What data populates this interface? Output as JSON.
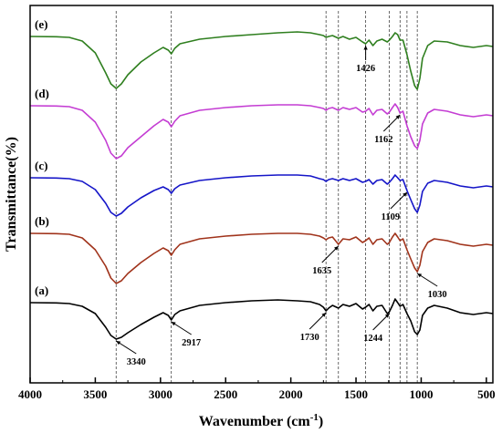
{
  "chart_data": {
    "type": "line",
    "xlabel": "Wavenumber (cm-1)",
    "xlabel_main": "Wavenumber (cm",
    "xlabel_sup": "-1",
    "xlabel_close": ")",
    "ylabel": "Transmittance(%)",
    "xlim": [
      4000,
      450
    ],
    "x_reversed": true,
    "x_ticks": [
      4000,
      3500,
      3000,
      2500,
      2000,
      1500,
      1000,
      500
    ],
    "grid": false,
    "legend": "none",
    "reference_lines": [
      3340,
      2917,
      1730,
      1635,
      1426,
      1244,
      1162,
      1109,
      1030
    ],
    "series": [
      {
        "name": "(a)",
        "color": "#000000",
        "baseline": 0.0,
        "points": [
          [
            4000,
            0
          ],
          [
            3800,
            -0.3
          ],
          [
            3700,
            -1
          ],
          [
            3600,
            -4
          ],
          [
            3500,
            -12
          ],
          [
            3420,
            -27
          ],
          [
            3380,
            -36
          ],
          [
            3340,
            -40
          ],
          [
            3300,
            -38
          ],
          [
            3250,
            -33
          ],
          [
            3150,
            -24
          ],
          [
            3050,
            -16
          ],
          [
            2980,
            -11
          ],
          [
            2940,
            -14
          ],
          [
            2917,
            -19
          ],
          [
            2890,
            -13
          ],
          [
            2850,
            -9
          ],
          [
            2700,
            -3
          ],
          [
            2500,
            0
          ],
          [
            2300,
            2
          ],
          [
            2100,
            3
          ],
          [
            1950,
            2
          ],
          [
            1850,
            1
          ],
          [
            1780,
            -2
          ],
          [
            1750,
            -5
          ],
          [
            1730,
            -9
          ],
          [
            1710,
            -6
          ],
          [
            1680,
            -3
          ],
          [
            1635,
            -6
          ],
          [
            1600,
            -2
          ],
          [
            1550,
            -4
          ],
          [
            1500,
            -1
          ],
          [
            1450,
            -7
          ],
          [
            1426,
            -5
          ],
          [
            1400,
            -2
          ],
          [
            1370,
            -9
          ],
          [
            1340,
            -4
          ],
          [
            1300,
            -3
          ],
          [
            1260,
            -12
          ],
          [
            1244,
            -10
          ],
          [
            1220,
            -3
          ],
          [
            1200,
            4
          ],
          [
            1180,
            0
          ],
          [
            1162,
            -4
          ],
          [
            1140,
            -2
          ],
          [
            1109,
            -12
          ],
          [
            1080,
            -20
          ],
          [
            1050,
            -32
          ],
          [
            1030,
            -35
          ],
          [
            1010,
            -30
          ],
          [
            990,
            -14
          ],
          [
            950,
            -6
          ],
          [
            900,
            -3
          ],
          [
            800,
            -6
          ],
          [
            700,
            -11
          ],
          [
            600,
            -13
          ],
          [
            500,
            -11
          ],
          [
            450,
            -12
          ]
        ]
      },
      {
        "name": "(b)",
        "color": "#a0331b",
        "baseline": 0.0,
        "points": [
          [
            4000,
            0
          ],
          [
            3800,
            -0.3
          ],
          [
            3700,
            -1
          ],
          [
            3600,
            -5
          ],
          [
            3500,
            -18
          ],
          [
            3420,
            -36
          ],
          [
            3380,
            -49
          ],
          [
            3340,
            -55
          ],
          [
            3300,
            -52
          ],
          [
            3250,
            -44
          ],
          [
            3150,
            -32
          ],
          [
            3050,
            -22
          ],
          [
            2980,
            -16
          ],
          [
            2940,
            -19
          ],
          [
            2917,
            -24
          ],
          [
            2890,
            -18
          ],
          [
            2850,
            -12
          ],
          [
            2700,
            -6
          ],
          [
            2500,
            -3
          ],
          [
            2300,
            -1
          ],
          [
            2100,
            0
          ],
          [
            1950,
            0
          ],
          [
            1850,
            -1
          ],
          [
            1780,
            -3
          ],
          [
            1750,
            -5
          ],
          [
            1730,
            -7
          ],
          [
            1710,
            -5
          ],
          [
            1680,
            -4
          ],
          [
            1635,
            -12
          ],
          [
            1600,
            -6
          ],
          [
            1550,
            -7
          ],
          [
            1500,
            -4
          ],
          [
            1450,
            -10
          ],
          [
            1426,
            -8
          ],
          [
            1400,
            -5
          ],
          [
            1370,
            -12
          ],
          [
            1340,
            -7
          ],
          [
            1300,
            -6
          ],
          [
            1260,
            -12
          ],
          [
            1244,
            -10
          ],
          [
            1220,
            -4
          ],
          [
            1200,
            0
          ],
          [
            1180,
            -4
          ],
          [
            1162,
            -8
          ],
          [
            1140,
            -6
          ],
          [
            1109,
            -18
          ],
          [
            1080,
            -28
          ],
          [
            1050,
            -38
          ],
          [
            1030,
            -42
          ],
          [
            1010,
            -35
          ],
          [
            990,
            -20
          ],
          [
            950,
            -10
          ],
          [
            900,
            -6
          ],
          [
            800,
            -8
          ],
          [
            700,
            -12
          ],
          [
            600,
            -14
          ],
          [
            500,
            -12
          ],
          [
            450,
            -13
          ]
        ]
      },
      {
        "name": "(c)",
        "color": "#1515c8",
        "baseline": 0.0,
        "points": [
          [
            4000,
            0
          ],
          [
            3800,
            -0.3
          ],
          [
            3700,
            -1
          ],
          [
            3600,
            -4
          ],
          [
            3500,
            -13
          ],
          [
            3420,
            -28
          ],
          [
            3380,
            -38
          ],
          [
            3340,
            -42
          ],
          [
            3300,
            -39
          ],
          [
            3250,
            -32
          ],
          [
            3150,
            -22
          ],
          [
            3050,
            -14
          ],
          [
            2980,
            -10
          ],
          [
            2940,
            -13
          ],
          [
            2917,
            -17
          ],
          [
            2890,
            -12
          ],
          [
            2850,
            -8
          ],
          [
            2700,
            -3
          ],
          [
            2500,
            0
          ],
          [
            2300,
            2
          ],
          [
            2100,
            3
          ],
          [
            1950,
            3
          ],
          [
            1850,
            2
          ],
          [
            1780,
            -1
          ],
          [
            1750,
            -2
          ],
          [
            1730,
            -4
          ],
          [
            1710,
            -2
          ],
          [
            1680,
            -1
          ],
          [
            1635,
            -3
          ],
          [
            1600,
            -1
          ],
          [
            1550,
            -3
          ],
          [
            1500,
            -1
          ],
          [
            1450,
            -5
          ],
          [
            1426,
            -4
          ],
          [
            1400,
            -2
          ],
          [
            1370,
            -7
          ],
          [
            1340,
            -3
          ],
          [
            1300,
            -2
          ],
          [
            1260,
            -7
          ],
          [
            1244,
            -5
          ],
          [
            1220,
            -1
          ],
          [
            1200,
            3
          ],
          [
            1180,
            0
          ],
          [
            1162,
            -3
          ],
          [
            1140,
            -2
          ],
          [
            1109,
            -14
          ],
          [
            1080,
            -24
          ],
          [
            1050,
            -34
          ],
          [
            1030,
            -38
          ],
          [
            1010,
            -30
          ],
          [
            990,
            -15
          ],
          [
            950,
            -6
          ],
          [
            900,
            -3
          ],
          [
            800,
            -5
          ],
          [
            700,
            -9
          ],
          [
            600,
            -11
          ],
          [
            500,
            -9
          ],
          [
            450,
            -10
          ]
        ]
      },
      {
        "name": "(d)",
        "color": "#c43dd3",
        "baseline": 0.0,
        "points": [
          [
            4000,
            0
          ],
          [
            3800,
            -0.3
          ],
          [
            3700,
            -1
          ],
          [
            3600,
            -5
          ],
          [
            3500,
            -18
          ],
          [
            3420,
            -38
          ],
          [
            3380,
            -52
          ],
          [
            3340,
            -58
          ],
          [
            3300,
            -55
          ],
          [
            3250,
            -46
          ],
          [
            3150,
            -34
          ],
          [
            3050,
            -22
          ],
          [
            2980,
            -15
          ],
          [
            2940,
            -18
          ],
          [
            2917,
            -23
          ],
          [
            2890,
            -17
          ],
          [
            2850,
            -11
          ],
          [
            2700,
            -5
          ],
          [
            2500,
            -2
          ],
          [
            2300,
            0
          ],
          [
            2100,
            1
          ],
          [
            1950,
            1
          ],
          [
            1850,
            0
          ],
          [
            1780,
            -2
          ],
          [
            1750,
            -3
          ],
          [
            1730,
            -5
          ],
          [
            1710,
            -3
          ],
          [
            1680,
            -2
          ],
          [
            1635,
            -5
          ],
          [
            1600,
            -2
          ],
          [
            1550,
            -4
          ],
          [
            1500,
            -2
          ],
          [
            1450,
            -7
          ],
          [
            1426,
            -6
          ],
          [
            1400,
            -3
          ],
          [
            1370,
            -10
          ],
          [
            1340,
            -5
          ],
          [
            1300,
            -4
          ],
          [
            1260,
            -9
          ],
          [
            1244,
            -7
          ],
          [
            1220,
            -2
          ],
          [
            1200,
            2
          ],
          [
            1180,
            -2
          ],
          [
            1162,
            -8
          ],
          [
            1140,
            -6
          ],
          [
            1109,
            -22
          ],
          [
            1080,
            -34
          ],
          [
            1050,
            -44
          ],
          [
            1030,
            -47
          ],
          [
            1010,
            -38
          ],
          [
            990,
            -20
          ],
          [
            950,
            -8
          ],
          [
            900,
            -4
          ],
          [
            800,
            -6
          ],
          [
            700,
            -10
          ],
          [
            600,
            -12
          ],
          [
            500,
            -10
          ],
          [
            450,
            -11
          ]
        ]
      },
      {
        "name": "(e)",
        "color": "#2f7f1f",
        "baseline": 0.0,
        "points": [
          [
            4000,
            0
          ],
          [
            3800,
            -0.3
          ],
          [
            3700,
            -1
          ],
          [
            3600,
            -5
          ],
          [
            3500,
            -18
          ],
          [
            3420,
            -40
          ],
          [
            3380,
            -52
          ],
          [
            3340,
            -57
          ],
          [
            3300,
            -52
          ],
          [
            3250,
            -42
          ],
          [
            3150,
            -28
          ],
          [
            3050,
            -18
          ],
          [
            2980,
            -12
          ],
          [
            2940,
            -15
          ],
          [
            2917,
            -19
          ],
          [
            2890,
            -13
          ],
          [
            2850,
            -8
          ],
          [
            2700,
            -3
          ],
          [
            2500,
            0
          ],
          [
            2300,
            2
          ],
          [
            2100,
            4
          ],
          [
            1950,
            5
          ],
          [
            1850,
            4
          ],
          [
            1780,
            2
          ],
          [
            1750,
            1
          ],
          [
            1730,
            -1
          ],
          [
            1710,
            0
          ],
          [
            1680,
            1
          ],
          [
            1635,
            -2
          ],
          [
            1600,
            0
          ],
          [
            1550,
            -3
          ],
          [
            1500,
            -1
          ],
          [
            1450,
            -6
          ],
          [
            1426,
            -8
          ],
          [
            1400,
            -4
          ],
          [
            1370,
            -10
          ],
          [
            1340,
            -5
          ],
          [
            1300,
            -3
          ],
          [
            1260,
            -6
          ],
          [
            1244,
            -4
          ],
          [
            1220,
            0
          ],
          [
            1200,
            4
          ],
          [
            1180,
            2
          ],
          [
            1162,
            -4
          ],
          [
            1140,
            -4
          ],
          [
            1109,
            -20
          ],
          [
            1080,
            -38
          ],
          [
            1050,
            -54
          ],
          [
            1030,
            -58
          ],
          [
            1010,
            -46
          ],
          [
            990,
            -24
          ],
          [
            950,
            -10
          ],
          [
            900,
            -5
          ],
          [
            800,
            -6
          ],
          [
            700,
            -10
          ],
          [
            600,
            -12
          ],
          [
            500,
            -10
          ],
          [
            450,
            -11
          ]
        ]
      }
    ],
    "annotations": [
      {
        "label": "3340",
        "series": "(a)",
        "x": 3340,
        "placement": "below-right"
      },
      {
        "label": "2917",
        "series": "(a)",
        "x": 2917,
        "placement": "below-right"
      },
      {
        "label": "1730",
        "series": "(a)",
        "x": 1730,
        "placement": "below-left"
      },
      {
        "label": "1244",
        "series": "(a)",
        "x": 1244,
        "placement": "below-left"
      },
      {
        "label": "1635",
        "series": "(b)",
        "x": 1635,
        "placement": "below-left"
      },
      {
        "label": "1030",
        "series": "(b)",
        "x": 1030,
        "placement": "below-right"
      },
      {
        "label": "1109",
        "series": "(c)",
        "x": 1109,
        "placement": "below-left"
      },
      {
        "label": "1162",
        "series": "(d)",
        "x": 1162,
        "placement": "below-left"
      },
      {
        "label": "1426",
        "series": "(e)",
        "x": 1426,
        "placement": "below"
      }
    ]
  }
}
